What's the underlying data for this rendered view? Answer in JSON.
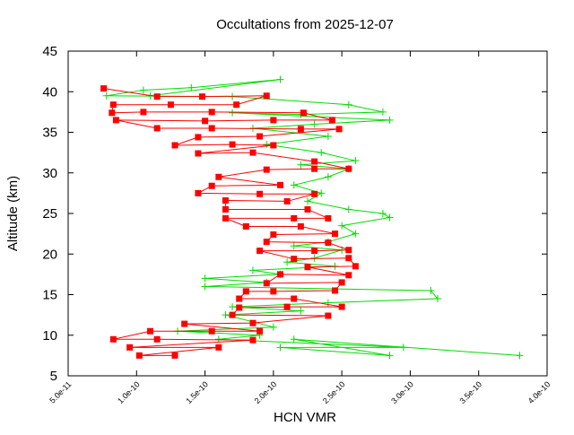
{
  "chart_data": {
    "type": "line",
    "title": "Occultations from 2025-12-07",
    "x_label": "HCN VMR",
    "y_label": "Altitude (km)",
    "xlim": [
      5e-11,
      4e-10
    ],
    "ylim": [
      5,
      45
    ],
    "xticks": [
      {
        "value": 5e-11,
        "label": "5.0e-11"
      },
      {
        "value": 1e-10,
        "label": "1.0e-10"
      },
      {
        "value": 1.5e-10,
        "label": "1.5e-10"
      },
      {
        "value": 2e-10,
        "label": "2.0e-10"
      },
      {
        "value": 2.5e-10,
        "label": "2.5e-10"
      },
      {
        "value": 3e-10,
        "label": "3.0e-10"
      },
      {
        "value": 3.5e-10,
        "label": "3.5e-10"
      },
      {
        "value": 4e-10,
        "label": "4.0e-10"
      }
    ],
    "yticks": [
      5,
      10,
      15,
      20,
      25,
      30,
      35,
      40,
      45
    ],
    "series": [
      {
        "color": "#00dd00",
        "marker": "plus",
        "x": [
          1.1e-10,
          2.05e-10,
          1.4e-10,
          1.05e-10,
          7.8e-11,
          1.7e-10,
          2.55e-10,
          2.8e-10,
          2.2e-10,
          1.7e-10,
          2.85e-10,
          2.3e-10,
          1.85e-10,
          2.4e-10,
          1.95e-10,
          2.35e-10,
          2.6e-10,
          2.2e-10,
          2.55e-10,
          2.4e-10,
          2.15e-10,
          2.35e-10,
          2.25e-10,
          2.55e-10,
          2.8e-10,
          2.85e-10,
          2.5e-10,
          2.6e-10,
          2.4e-10,
          2.15e-10,
          2.5e-10,
          2.3e-10,
          2.1e-10,
          2.45e-10,
          1.85e-10,
          2.05e-10,
          1.5e-10,
          1.95e-10,
          1.5e-10,
          3.15e-10,
          3.2e-10,
          2.4e-10,
          1.7e-10,
          2.2e-10,
          1.65e-10,
          2e-10,
          1.3e-10,
          1.9e-10,
          1.6e-10,
          2.95e-10,
          2.05e-10,
          2.85e-10,
          2.15e-10,
          3.8e-10
        ],
        "values": [
          39.5,
          41.5,
          40.5,
          40.2,
          39.5,
          39.4,
          38.4,
          37.5,
          37.2,
          37.4,
          36.5,
          36,
          35.5,
          34.5,
          33.5,
          32.5,
          31.5,
          31,
          30.5,
          29.5,
          28.5,
          27.5,
          26.5,
          25.5,
          25,
          24.5,
          23.5,
          22.5,
          21.5,
          21,
          20.5,
          19.5,
          19,
          18.5,
          18,
          17.5,
          17,
          16.5,
          16,
          15.5,
          14.5,
          14,
          13.5,
          13,
          12.5,
          11,
          10.5,
          10,
          9.5,
          8.5,
          8.5,
          7.5,
          9.5,
          7.5
        ]
      },
      {
        "color": "#ff0000",
        "marker": "square",
        "x": [
          7.6e-11,
          1.15e-10,
          1.48e-10,
          1.95e-10,
          1.73e-10,
          1.25e-10,
          8.3e-11,
          8.2e-11,
          1.05e-10,
          1.55e-10,
          2.22e-10,
          2.43e-10,
          2e-10,
          1.5e-10,
          8.5e-11,
          1.15e-10,
          1.55e-10,
          2.2e-10,
          2.48e-10,
          1.9e-10,
          1.45e-10,
          1.28e-10,
          1.7e-10,
          2e-10,
          1.45e-10,
          1.85e-10,
          2.3e-10,
          2.55e-10,
          2.3e-10,
          1.95e-10,
          1.6e-10,
          2.05e-10,
          1.55e-10,
          1.45e-10,
          1.9e-10,
          2.3e-10,
          2.1e-10,
          1.65e-10,
          1.65e-10,
          2.25e-10,
          2.4e-10,
          2.15e-10,
          1.65e-10,
          1.8e-10,
          2.2e-10,
          2.45e-10,
          2e-10,
          1.95e-10,
          2.4e-10,
          2.55e-10,
          2.3e-10,
          1.9e-10,
          2.15e-10,
          2.55e-10,
          2.6e-10,
          2.25e-10,
          2.55e-10,
          2.05e-10,
          1.95e-10,
          2.5e-10,
          2.45e-10,
          2e-10,
          1.8e-10,
          1.75e-10,
          2.15e-10,
          2.5e-10,
          2.1e-10,
          1.75e-10,
          1.7e-10,
          2.4e-10,
          1.85e-10,
          1.35e-10,
          1.9e-10,
          1.55e-10,
          1.1e-10,
          8.3e-11,
          1.15e-10,
          1.85e-10,
          9.5e-11,
          1.6e-10,
          1.02e-10,
          1.28e-10
        ],
        "values": [
          40.4,
          39.4,
          39.4,
          39.5,
          38.4,
          38.4,
          38.4,
          37.4,
          37.5,
          37.5,
          37.4,
          36.5,
          36.5,
          36.4,
          36.5,
          35.5,
          35.5,
          35.4,
          35.4,
          34.5,
          34.4,
          33.4,
          33.5,
          33.4,
          32.4,
          32.5,
          31.4,
          30.5,
          30.5,
          30.4,
          29.5,
          28.5,
          28.4,
          27.5,
          27.4,
          27.4,
          26.5,
          26.6,
          25.5,
          25.5,
          24.4,
          24.4,
          24.4,
          23.4,
          23.4,
          22.5,
          22.4,
          21.5,
          21.4,
          20.5,
          20.4,
          20.4,
          19.4,
          19.5,
          18.5,
          18.4,
          17.4,
          17.5,
          16.4,
          16.5,
          15.5,
          15.4,
          15.4,
          14.5,
          14.5,
          13.5,
          13.5,
          13.4,
          12.5,
          12.4,
          11.5,
          11.4,
          10.5,
          10.5,
          10.5,
          9.5,
          9.5,
          9.4,
          8.5,
          8.5,
          7.5,
          7.5
        ]
      }
    ]
  }
}
